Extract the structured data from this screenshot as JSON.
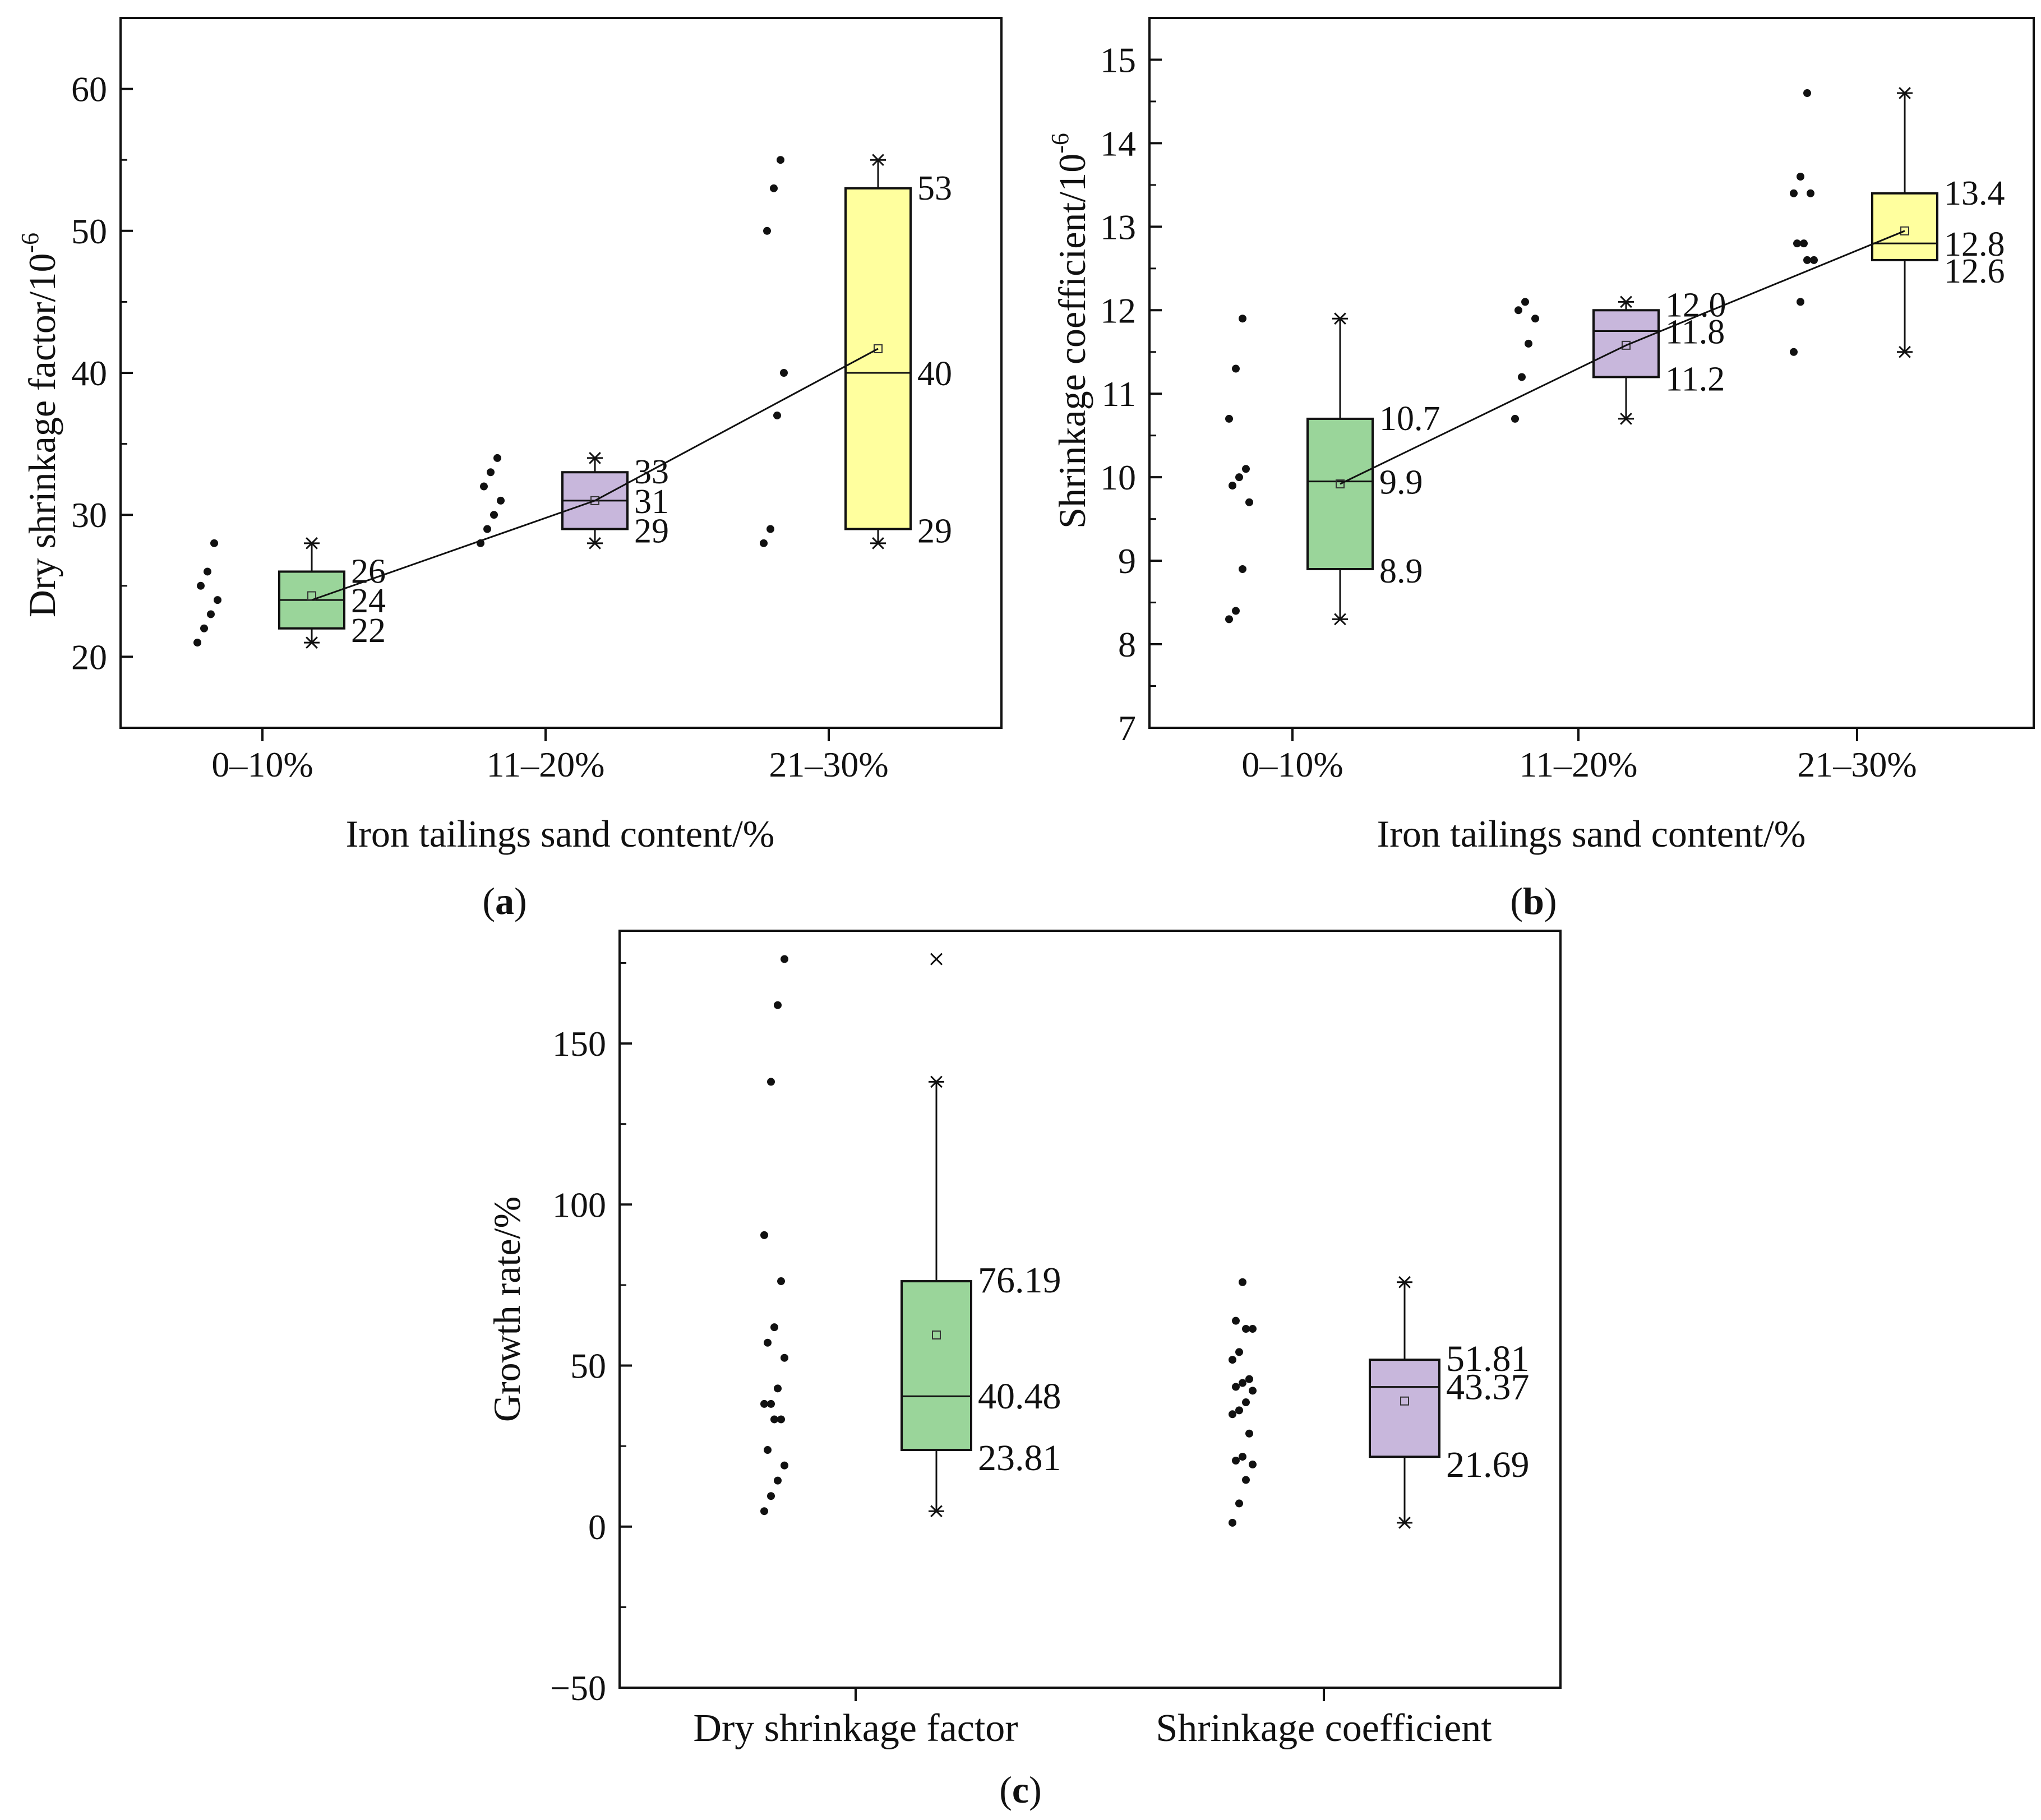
{
  "figure": {
    "panels": [
      "a",
      "b",
      "c"
    ]
  },
  "chart_data": [
    {
      "id": "a",
      "type": "box",
      "panel_label": "a",
      "title": "",
      "xlabel": "Iron tailings sand content/%",
      "ylabel_main": "Dry shrinkage factor/10",
      "ylabel_sup": "-6",
      "ylim": [
        15,
        65
      ],
      "yticks": [
        20,
        30,
        40,
        50,
        60
      ],
      "grid": false,
      "categories": [
        "0–10%",
        "11–20%",
        "21–30%"
      ],
      "raw_points": [
        [
          21,
          22,
          23,
          24,
          25,
          26,
          28
        ],
        [
          28,
          29,
          30,
          31,
          32,
          33,
          34
        ],
        [
          28,
          29,
          37,
          40,
          50,
          53,
          55
        ]
      ],
      "boxes": [
        {
          "category": "0–10%",
          "q1": 22,
          "median": 24,
          "q3": 26,
          "mean": 24.3,
          "min": 21,
          "max": 28,
          "color": "#9ad59a",
          "labels": {
            "q3": "26",
            "median": "24",
            "q1": "22"
          }
        },
        {
          "category": "11–20%",
          "q1": 29,
          "median": 31,
          "q3": 33,
          "mean": 31,
          "min": 28,
          "max": 34,
          "color": "#c8b7dc",
          "labels": {
            "q3": "33",
            "median": "31",
            "q1": "29"
          }
        },
        {
          "category": "21–30%",
          "q1": 29,
          "median": 40,
          "q3": 53,
          "mean": 41.7,
          "min": 28,
          "max": 55,
          "color": "#ffff9e",
          "labels": {
            "q3": "53",
            "median": "40",
            "q1": "29"
          }
        }
      ],
      "trend_line": [
        24,
        31,
        41.7
      ]
    },
    {
      "id": "b",
      "type": "box",
      "panel_label": "b",
      "title": "",
      "xlabel": "Iron tailings sand content/%",
      "ylabel_main": "Shrinkage coefficient/10",
      "ylabel_sup": "-6",
      "ylim": [
        7,
        15.5
      ],
      "yticks": [
        7,
        8,
        9,
        10,
        11,
        12,
        13,
        14,
        15
      ],
      "grid": false,
      "categories": [
        "0–10%",
        "11–20%",
        "21–30%"
      ],
      "raw_points": [
        [
          8.3,
          8.4,
          8.9,
          9.7,
          9.9,
          10.0,
          10.1,
          10.7,
          11.3,
          11.9
        ],
        [
          10.7,
          11.2,
          11.6,
          11.9,
          12.0,
          12.1
        ],
        [
          11.5,
          12.1,
          12.6,
          12.6,
          12.8,
          12.8,
          13.4,
          13.4,
          13.6,
          14.6
        ]
      ],
      "boxes": [
        {
          "category": "0–10%",
          "q1": 8.9,
          "median": 9.95,
          "q3": 10.7,
          "mean": 9.92,
          "min": 8.3,
          "max": 11.9,
          "color": "#9ad59a",
          "labels": {
            "q3": "10.7",
            "median": "9.9",
            "q1": "8.9"
          }
        },
        {
          "category": "11–20%",
          "q1": 11.2,
          "median": 11.75,
          "q3": 12.0,
          "mean": 11.58,
          "min": 10.7,
          "max": 12.1,
          "color": "#c8b7dc",
          "labels": {
            "q3": "12.0",
            "median": "11.8",
            "q1": "11.2"
          }
        },
        {
          "category": "21–30%",
          "q1": 12.6,
          "median": 12.8,
          "q3": 13.4,
          "mean": 12.95,
          "min": 11.5,
          "max": 14.6,
          "color": "#ffff9e",
          "labels": {
            "q3": "13.4",
            "median": "12.8",
            "q1": "12.6"
          }
        }
      ],
      "trend_line": [
        9.92,
        11.58,
        12.95
      ]
    },
    {
      "id": "c",
      "type": "box",
      "panel_label": "c",
      "title": "",
      "xlabel": "",
      "ylabel_main": "Growth rate/%",
      "ylabel_sup": "",
      "ylim": [
        -50,
        185
      ],
      "yticks": [
        -50,
        0,
        50,
        100,
        150
      ],
      "ytick_labels": [
        "−50",
        "0",
        "50",
        "100",
        "150"
      ],
      "grid": false,
      "categories": [
        "Dry shrinkage factor",
        "Shrinkage coefficient"
      ],
      "raw_points": [
        [
          4.8,
          9.5,
          14.3,
          19.0,
          23.8,
          33.3,
          33.3,
          38.1,
          38.1,
          42.9,
          52.4,
          57.1,
          61.9,
          76.2,
          90.5,
          138.1,
          161.9,
          176.2
        ],
        [
          1.2,
          7.2,
          14.5,
          19.3,
          20.5,
          21.7,
          28.9,
          34.9,
          36.1,
          38.6,
          42.2,
          43.4,
          44.6,
          45.8,
          51.8,
          54.2,
          61.4,
          61.4,
          63.9,
          75.9
        ]
      ],
      "boxes": [
        {
          "category": "Dry shrinkage factor",
          "q1": 23.81,
          "median": 40.48,
          "q3": 76.19,
          "mean": 59.5,
          "min": 4.8,
          "max": 138.1,
          "color": "#9ad59a",
          "outlier": 176.2,
          "labels": {
            "q3": "76.19",
            "median": "40.48",
            "q1": "23.81"
          }
        },
        {
          "category": "Shrinkage coefficient",
          "q1": 21.69,
          "median": 43.37,
          "q3": 51.81,
          "mean": 39.0,
          "min": 1.2,
          "max": 75.9,
          "color": "#c8b7dc",
          "labels": {
            "q3": "51.81",
            "median": "43.37",
            "q1": "21.69"
          }
        }
      ]
    }
  ]
}
